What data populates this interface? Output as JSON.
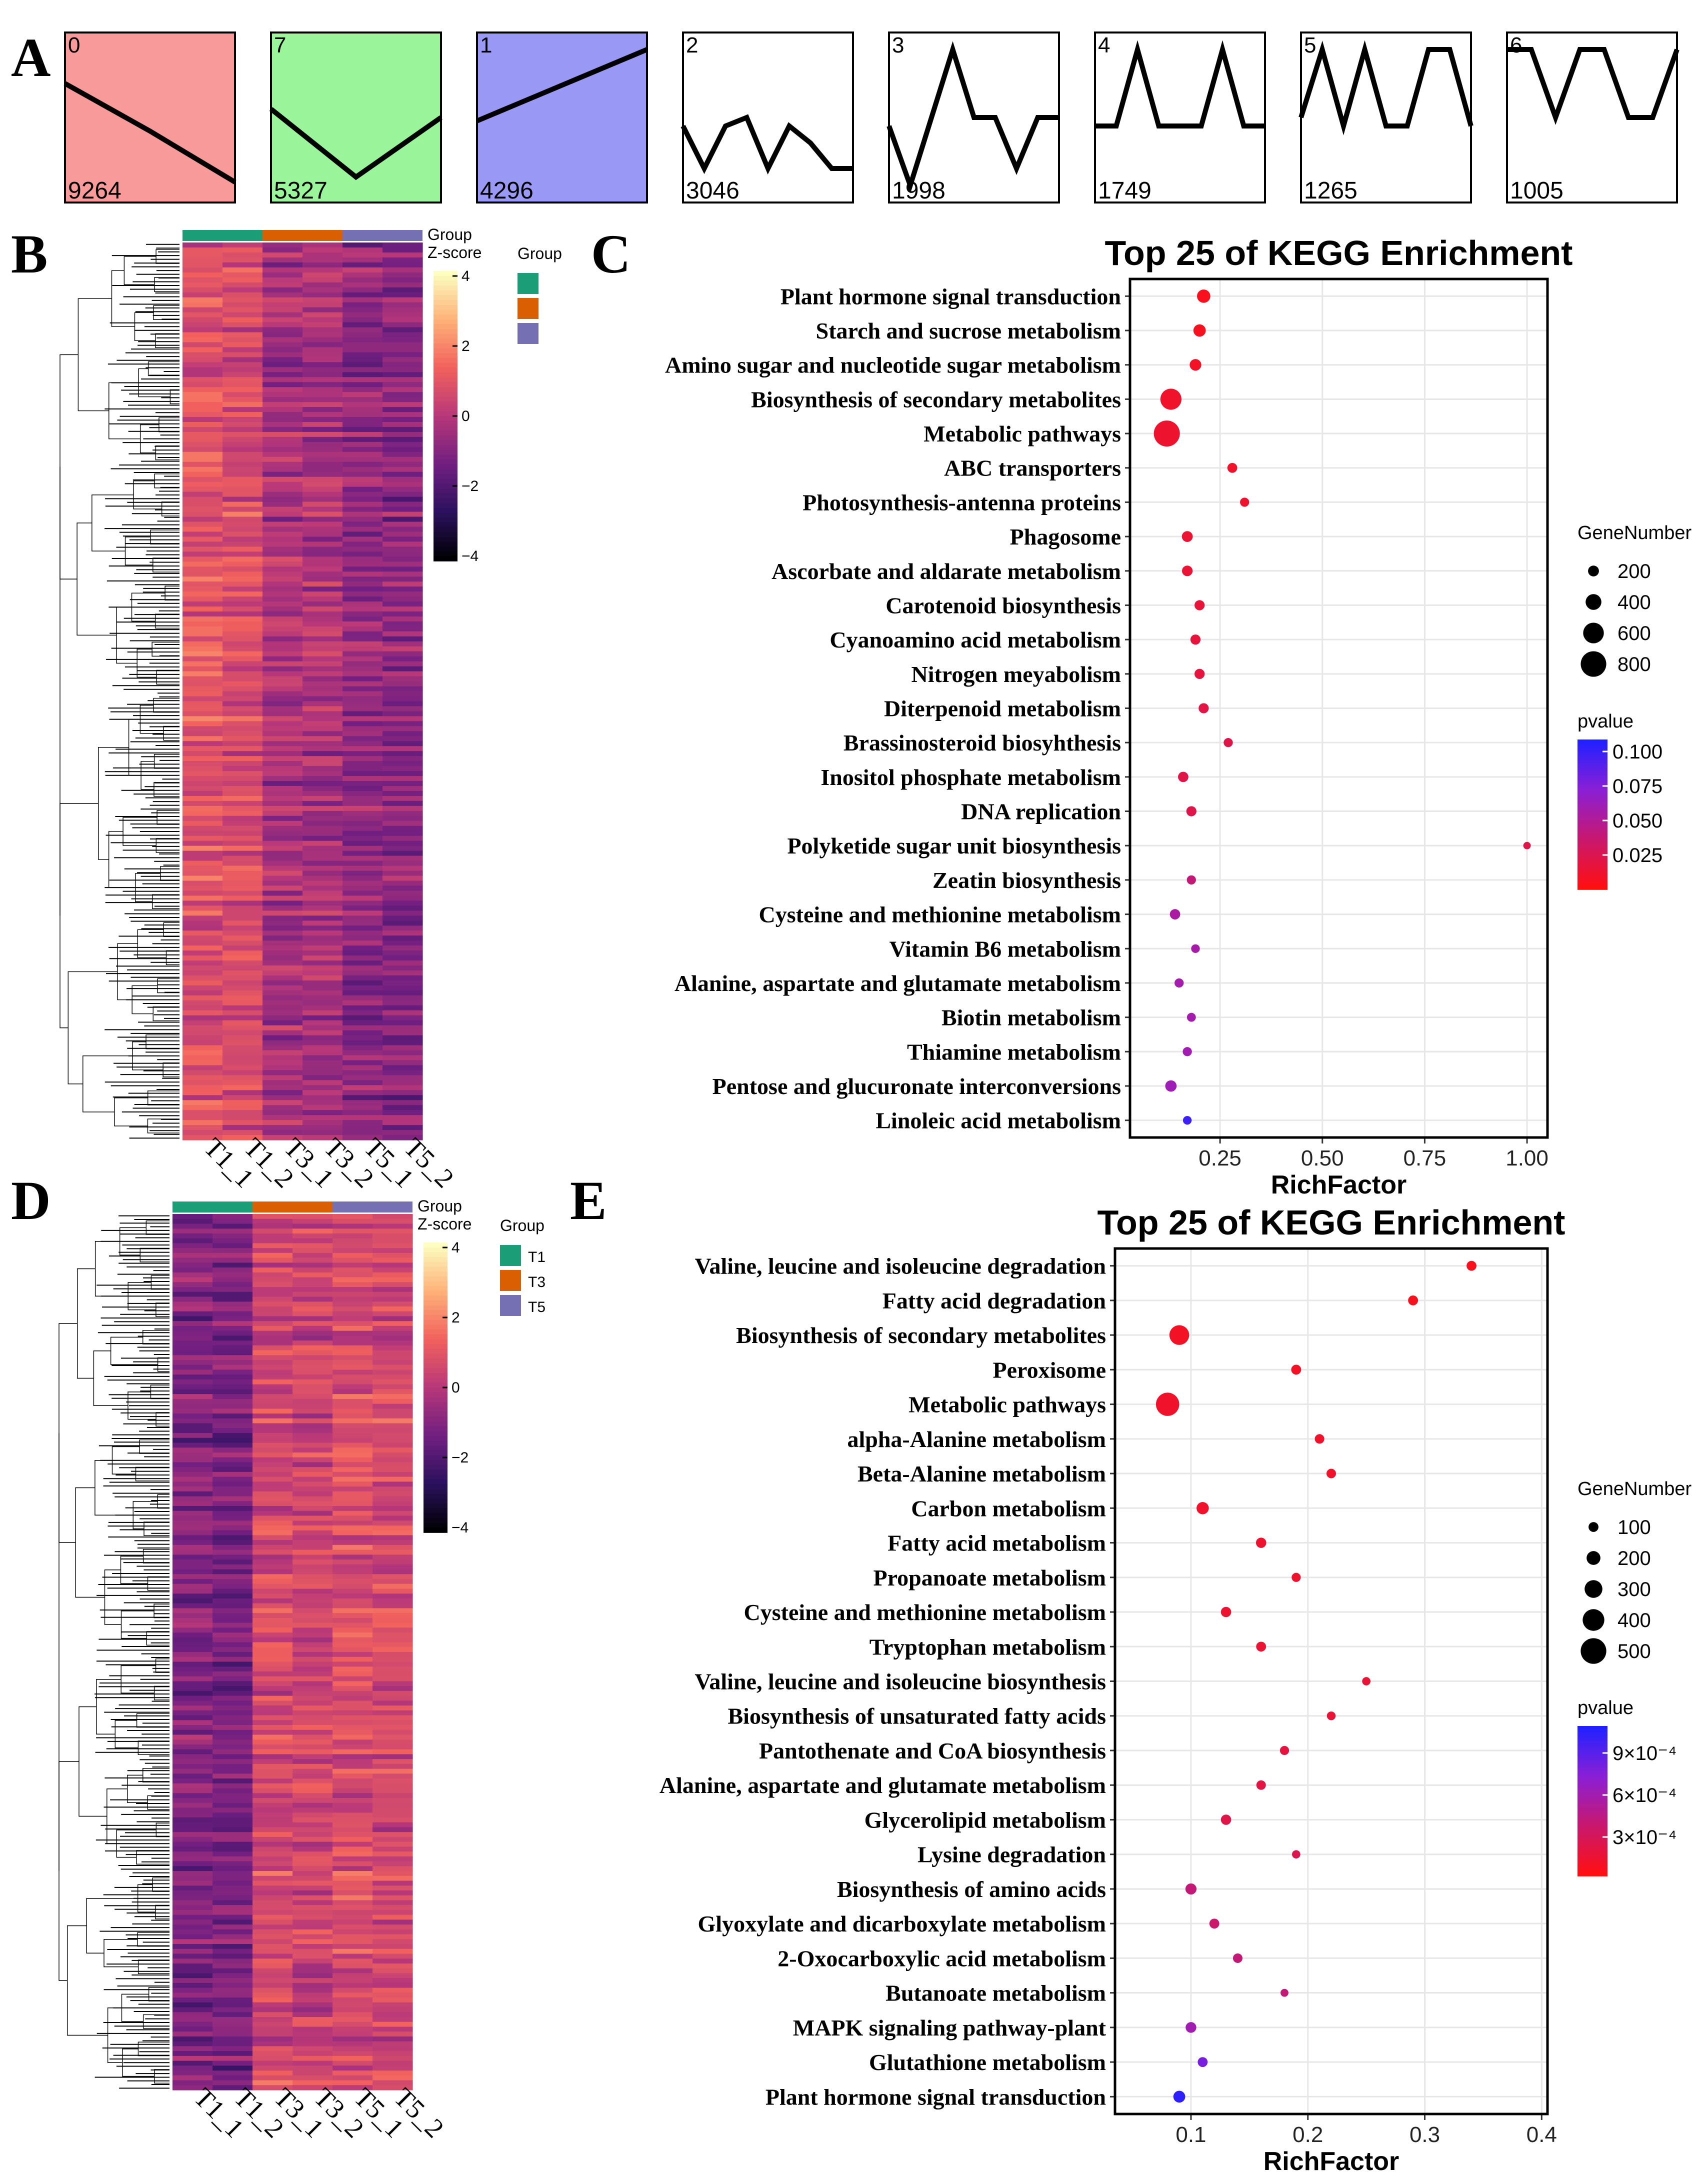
{
  "panel_letters": {
    "A": "A",
    "B": "B",
    "C": "C",
    "D": "D",
    "E": "E"
  },
  "panelA": {
    "clusters": [
      {
        "id": "0",
        "count": "9264",
        "bg": "#F99A9A",
        "profile": [
          0.3,
          0.58,
          0.88
        ]
      },
      {
        "id": "7",
        "count": "5327",
        "bg": "#9AF59A",
        "profile": [
          0.45,
          0.85,
          0.5
        ]
      },
      {
        "id": "1",
        "count": "4296",
        "bg": "#9999F5",
        "profile": [
          0.52,
          0.1
        ]
      },
      {
        "id": "2",
        "count": "3046",
        "bg": "#ffffff",
        "profile": [
          0.55,
          0.8,
          0.55,
          0.5,
          0.8,
          0.55,
          0.65,
          0.8,
          0.8
        ]
      },
      {
        "id": "3",
        "count": "1998",
        "bg": "#ffffff",
        "profile": [
          0.55,
          0.9,
          0.5,
          0.1,
          0.5,
          0.5,
          0.8,
          0.5,
          0.5
        ]
      },
      {
        "id": "4",
        "count": "1749",
        "bg": "#ffffff",
        "profile": [
          0.55,
          0.55,
          0.1,
          0.55,
          0.55,
          0.55,
          0.1,
          0.55,
          0.55
        ]
      },
      {
        "id": "5",
        "count": "1265",
        "bg": "#ffffff",
        "profile": [
          0.5,
          0.1,
          0.55,
          0.1,
          0.55,
          0.55,
          0.1,
          0.1,
          0.55
        ]
      },
      {
        "id": "6",
        "count": "1005",
        "bg": "#ffffff",
        "profile": [
          0.1,
          0.1,
          0.5,
          0.1,
          0.1,
          0.5,
          0.5,
          0.1
        ]
      }
    ]
  },
  "heatmaps": {
    "group_title": "Group",
    "zscore_title": "Z-score",
    "legend_labels": [
      "T1",
      "T3",
      "T5"
    ],
    "group_colors": [
      "#1B9E77",
      "#D95F02",
      "#7570B3"
    ],
    "color_stops": [
      "#000004",
      "#2C115F",
      "#721F81",
      "#B73779",
      "#F1605D",
      "#FEAF77",
      "#FCFDBF"
    ],
    "zscore_ticks": [
      "4",
      "2",
      "0",
      "−2",
      "−4"
    ],
    "columns": [
      "T1_1",
      "T1_2",
      "T3_1",
      "T3_2",
      "T5_1",
      "T5_2"
    ],
    "B_col_means": [
      0.9,
      0.7,
      -0.3,
      -0.3,
      -0.8,
      -0.9
    ],
    "D_col_means": [
      -1.1,
      -1.2,
      0.6,
      0.4,
      0.7,
      0.6
    ]
  },
  "chart_data": [
    {
      "type": "scatter",
      "panel": "C",
      "title": "Top 25 of KEGG Enrichment",
      "xlabel": "RichFactor",
      "ylabel": "",
      "xlim": [
        0.03,
        1.05
      ],
      "xticks": [
        "0.25",
        "0.50",
        "0.75",
        "1.00"
      ],
      "grid": true,
      "size_legend_title": "GeneNumber",
      "size_legend": [
        "200",
        "400",
        "600",
        "800"
      ],
      "color_legend_title": "pvalue",
      "color_legend": [
        "0.100",
        "0.075",
        "0.050",
        "0.025"
      ],
      "pvalue_range": [
        0,
        0.11
      ],
      "gene_range": [
        0,
        900
      ],
      "categories": [
        "Plant hormone signal transduction",
        "Starch and sucrose metabolism",
        "Amino sugar and nucleotide sugar metabolism",
        "Biosynthesis of secondary metabolites",
        "Metabolic pathways",
        "ABC transporters",
        "Photosynthesis-antenna proteins",
        "Phagosome",
        "Ascorbate and aldarate metabolism",
        "Carotenoid biosynthesis",
        "Cyanoamino acid metabolism",
        "Nitrogen meyabolism",
        "Diterpenoid metabolism",
        "Brassinosteroid biosyhthesis",
        "Inositol phosphate metabolism",
        "DNA replication",
        "Polyketide sugar unit biosynthesis",
        "Zeatin biosynthesis",
        "Cysteine and methionine metabolism",
        "Vitamin B6 metabolism",
        "Alanine, aspartate and glutamate metabolism",
        "Biotin metabolism",
        "Thiamine metabolism",
        "Pentose and glucuronate interconversions",
        "Linoleic acid metabolism"
      ],
      "rich_factor": [
        0.21,
        0.2,
        0.19,
        0.13,
        0.12,
        0.28,
        0.31,
        0.17,
        0.17,
        0.2,
        0.19,
        0.2,
        0.21,
        0.27,
        0.16,
        0.18,
        1.0,
        0.18,
        0.14,
        0.19,
        0.15,
        0.18,
        0.17,
        0.13,
        0.17
      ],
      "gene_number": [
        300,
        260,
        230,
        620,
        820,
        160,
        130,
        200,
        190,
        170,
        170,
        170,
        170,
        130,
        180,
        170,
        60,
        130,
        180,
        110,
        130,
        120,
        130,
        220,
        110
      ],
      "pvalue": [
        0.005,
        0.006,
        0.008,
        0.01,
        0.012,
        0.01,
        0.012,
        0.014,
        0.015,
        0.016,
        0.017,
        0.018,
        0.02,
        0.022,
        0.022,
        0.023,
        0.023,
        0.04,
        0.055,
        0.057,
        0.058,
        0.058,
        0.06,
        0.062,
        0.1
      ]
    },
    {
      "type": "scatter",
      "panel": "E",
      "title": "Top 25 of KEGG Enrichment",
      "xlabel": "RichFactor",
      "ylabel": "",
      "xlim": [
        0.035,
        0.405
      ],
      "xticks": [
        "0.1",
        "0.2",
        "0.3",
        "0.4"
      ],
      "grid": true,
      "size_legend_title": "GeneNumber",
      "size_legend": [
        "100",
        "200",
        "300",
        "400",
        "500"
      ],
      "color_legend_title": "pvalue",
      "color_legend": [
        "9×10⁻⁴",
        "6×10⁻⁴",
        "3×10⁻⁴"
      ],
      "pvalue_range": [
        0,
        0.0011
      ],
      "gene_range": [
        0,
        560
      ],
      "categories": [
        "Valine, leucine and isoleucine degradation",
        "Fatty acid degradation",
        "Biosynthesis of secondary metabolites",
        "Peroxisome",
        "Metabolic pathways",
        "alpha-Alanine metabolism",
        "Beta-Alanine metabolism",
        "Carbon metabolism",
        "Fatty acid metabolism",
        "Propanoate metabolism",
        "Cysteine and methionine metabolism",
        "Tryptophan metabolism",
        "Valine, leucine and isoleucine biosynthesis",
        "Biosynthesis of unsaturated fatty acids",
        "Pantothenate and CoA biosynthesis",
        "Alanine, aspartate and glutamate metabolism",
        "Glycerolipid metabolism",
        "Lysine degradation",
        "Biosynthesis of amino acids",
        "Glyoxylate and dicarboxylate metabolism",
        "2-Oxocarboxylic acid metabolism",
        "Butanoate metabolism",
        "MAPK signaling pathway-plant",
        "Glutathione metabolism",
        "Plant hormone signal transduction"
      ],
      "rich_factor": [
        0.34,
        0.29,
        0.09,
        0.19,
        0.08,
        0.21,
        0.22,
        0.11,
        0.16,
        0.19,
        0.13,
        0.16,
        0.25,
        0.22,
        0.18,
        0.16,
        0.13,
        0.19,
        0.1,
        0.12,
        0.14,
        0.18,
        0.1,
        0.11,
        0.09
      ],
      "gene_number": [
        100,
        100,
        350,
        100,
        440,
        90,
        90,
        160,
        110,
        80,
        110,
        100,
        60,
        70,
        80,
        90,
        110,
        60,
        130,
        100,
        90,
        50,
        120,
        100,
        150
      ],
      "pvalue": [
        5e-05,
        6e-05,
        8e-05,
        8e-05,
        0.0001,
        0.0001,
        0.0001,
        0.0001,
        0.00012,
        0.00012,
        0.00013,
        0.00014,
        0.00015,
        0.00016,
        0.00018,
        0.0002,
        0.00022,
        0.00025,
        0.0004,
        0.00035,
        0.0004,
        0.0004,
        0.0006,
        0.0008,
        0.00105
      ]
    }
  ]
}
